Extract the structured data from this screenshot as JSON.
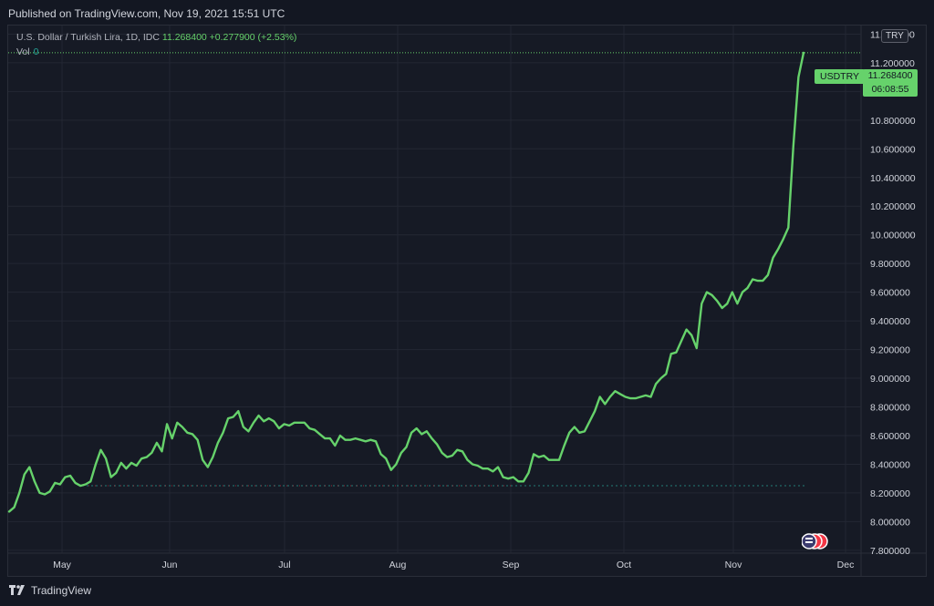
{
  "header": {
    "published": "Published on TradingView.com, Nov 19, 2021 15:51 UTC"
  },
  "legend": {
    "symbol": "U.S. Dollar / Turkish Lira, 1D, IDC",
    "price": "11.268400",
    "change": "+0.277900 (+2.53%)",
    "vol_label": "Vol",
    "vol_value": "0"
  },
  "currency_badge": "TRY",
  "price_tag": {
    "symbol": "USDTRY",
    "price": "11.268400",
    "countdown": "06:08:55"
  },
  "footer": {
    "brand": "TradingView"
  },
  "colors": {
    "line": "#66d26b",
    "background": "#161a25",
    "grid": "#232733",
    "axis_text": "#d1d4dc"
  },
  "chart_data": {
    "type": "line",
    "ylim": [
      7.78,
      11.46
    ],
    "yticks": [
      "7.800000",
      "8.000000",
      "8.200000",
      "8.400000",
      "8.600000",
      "8.800000",
      "9.000000",
      "9.200000",
      "9.400000",
      "9.600000",
      "9.800000",
      "10.000000",
      "10.200000",
      "10.400000",
      "10.600000",
      "10.800000",
      "11.000000",
      "11.200000",
      "11.400000"
    ],
    "x_labels": [
      "May",
      "Jun",
      "Jul",
      "Aug",
      "Sep",
      "Oct",
      "Nov",
      "Dec"
    ],
    "values": [
      8.07,
      8.1,
      8.2,
      8.33,
      8.38,
      8.28,
      8.2,
      8.19,
      8.21,
      8.27,
      8.26,
      8.31,
      8.32,
      8.27,
      8.25,
      8.26,
      8.28,
      8.4,
      8.5,
      8.44,
      8.31,
      8.34,
      8.41,
      8.37,
      8.41,
      8.39,
      8.44,
      8.45,
      8.48,
      8.55,
      8.49,
      8.68,
      8.58,
      8.69,
      8.66,
      8.62,
      8.61,
      8.57,
      8.43,
      8.38,
      8.45,
      8.55,
      8.62,
      8.72,
      8.73,
      8.77,
      8.66,
      8.63,
      8.69,
      8.74,
      8.7,
      8.72,
      8.7,
      8.65,
      8.68,
      8.67,
      8.69,
      8.69,
      8.69,
      8.65,
      8.64,
      8.61,
      8.58,
      8.58,
      8.53,
      8.6,
      8.57,
      8.57,
      8.58,
      8.57,
      8.56,
      8.57,
      8.56,
      8.47,
      8.44,
      8.36,
      8.4,
      8.48,
      8.52,
      8.62,
      8.65,
      8.61,
      8.63,
      8.58,
      8.54,
      8.48,
      8.45,
      8.46,
      8.5,
      8.49,
      8.43,
      8.4,
      8.39,
      8.37,
      8.37,
      8.35,
      8.38,
      8.31,
      8.3,
      8.31,
      8.28,
      8.28,
      8.34,
      8.47,
      8.45,
      8.46,
      8.43,
      8.43,
      8.43,
      8.53,
      8.62,
      8.66,
      8.62,
      8.63,
      8.7,
      8.77,
      8.87,
      8.82,
      8.87,
      8.91,
      8.89,
      8.87,
      8.86,
      8.86,
      8.87,
      8.88,
      8.87,
      8.96,
      9.0,
      9.03,
      9.17,
      9.18,
      9.26,
      9.34,
      9.3,
      9.21,
      9.52,
      9.6,
      9.58,
      9.54,
      9.49,
      9.52,
      9.6,
      9.52,
      9.6,
      9.63,
      9.69,
      9.68,
      9.68,
      9.72,
      9.84,
      9.9,
      9.97,
      10.05,
      10.62,
      11.1,
      11.27
    ]
  }
}
